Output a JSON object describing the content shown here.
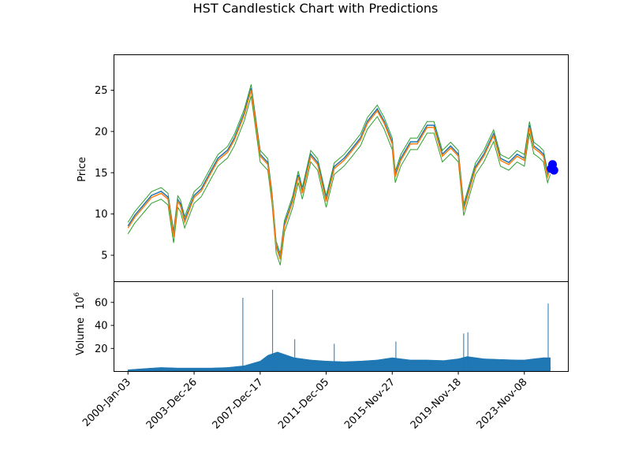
{
  "figure": {
    "title": "HST Candlestick Chart with Predictions"
  },
  "chart_data": [
    {
      "type": "candlestick",
      "panel": "price",
      "ylabel": "Price",
      "ylim": [
        1.8,
        29.3
      ],
      "yticks": [
        5,
        10,
        15,
        20,
        25
      ],
      "x_range": [
        "1999-03-01",
        "2026-07-01"
      ],
      "colors": {
        "close_line": "#ff7f0e",
        "open_line": "#1f77b4",
        "wick": "#2ca02c",
        "prediction": "#0000ff"
      },
      "series": [
        {
          "name": "close",
          "x": [
            "2000-01-03",
            "2000-06-01",
            "2001-01-01",
            "2001-06-01",
            "2002-01-01",
            "2002-06-01",
            "2002-10-01",
            "2003-01-01",
            "2003-03-01",
            "2003-06-01",
            "2003-12-26",
            "2004-06-01",
            "2005-01-01",
            "2005-06-01",
            "2006-01-01",
            "2006-06-01",
            "2007-01-01",
            "2007-06-01",
            "2007-12-17",
            "2008-06-01",
            "2008-09-01",
            "2008-12-01",
            "2009-03-01",
            "2009-06-01",
            "2009-12-01",
            "2010-04-01",
            "2010-07-01",
            "2011-01-01",
            "2011-06-01",
            "2011-12-05",
            "2012-06-01",
            "2013-01-01",
            "2013-06-01",
            "2014-01-01",
            "2014-06-01",
            "2015-01-01",
            "2015-06-01",
            "2015-11-27",
            "2016-02-01",
            "2016-06-01",
            "2017-01-01",
            "2017-06-01",
            "2018-01-01",
            "2018-06-01",
            "2018-12-01",
            "2019-06-01",
            "2019-11-18",
            "2020-03-15",
            "2020-06-01",
            "2020-12-01",
            "2021-06-01",
            "2022-01-01",
            "2022-06-01",
            "2022-12-01",
            "2023-06-01",
            "2023-11-08",
            "2024-03-01",
            "2024-06-01",
            "2024-10-01",
            "2025-01-01",
            "2025-04-01",
            "2025-06-01"
          ],
          "values": [
            8.3,
            9.6,
            11.0,
            12.0,
            12.5,
            11.8,
            7.2,
            11.5,
            11.0,
            9.0,
            12.0,
            12.8,
            15.0,
            16.5,
            17.5,
            19.0,
            22.0,
            25.0,
            17.0,
            16.0,
            12.0,
            6.0,
            4.5,
            8.5,
            11.5,
            14.5,
            12.5,
            17.0,
            16.0,
            11.5,
            15.5,
            16.5,
            17.5,
            19.0,
            21.0,
            22.5,
            21.0,
            18.5,
            14.5,
            16.5,
            18.5,
            18.5,
            20.5,
            20.5,
            17.0,
            18.0,
            17.0,
            10.5,
            12.0,
            15.5,
            17.0,
            19.5,
            16.5,
            16.0,
            17.0,
            16.5,
            20.5,
            18.0,
            17.5,
            17.0,
            14.5,
            15.5
          ]
        }
      ],
      "predictions": {
        "x": [
          "2025-06-20",
          "2025-07-20",
          "2025-08-20"
        ],
        "values": [
          15.5,
          16.0,
          15.3
        ]
      }
    },
    {
      "type": "bar",
      "panel": "volume",
      "ylabel": "Volume",
      "yscale_label": "10^6",
      "ylim": [
        0,
        78
      ],
      "yticks": [
        20,
        40,
        60
      ],
      "color": "#1f77b4",
      "x": [
        "2000-01-03",
        "2001-01-01",
        "2002-01-01",
        "2003-01-01",
        "2004-01-01",
        "2005-01-01",
        "2006-01-01",
        "2007-01-01",
        "2007-12-17",
        "2008-06-01",
        "2009-01-01",
        "2010-01-01",
        "2011-01-01",
        "2011-12-05",
        "2013-01-01",
        "2014-01-01",
        "2015-01-01",
        "2015-11-27",
        "2017-01-01",
        "2018-01-01",
        "2019-01-01",
        "2019-11-18",
        "2020-06-01",
        "2021-06-01",
        "2022-06-01",
        "2023-06-01",
        "2023-11-08",
        "2024-06-01",
        "2025-01-01",
        "2025-06-01"
      ],
      "values": [
        1.5,
        2.5,
        3.5,
        3.0,
        3.0,
        3.0,
        3.5,
        5.0,
        9.0,
        14.0,
        17.0,
        12.0,
        10.0,
        9.0,
        8.5,
        9.0,
        10.0,
        12.0,
        10.0,
        10.0,
        9.5,
        11.0,
        13.0,
        11.0,
        10.5,
        10.0,
        10.0,
        11.0,
        12.0,
        12.0
      ],
      "spikes": {
        "x": [
          "2006-12-01",
          "2008-09-15",
          "2010-01-15",
          "2012-06-01",
          "2016-02-15",
          "2020-03-15",
          "2020-06-15",
          "2025-04-15"
        ],
        "values": [
          64,
          71,
          28,
          24,
          26,
          33,
          34,
          59
        ]
      }
    }
  ],
  "x_axis": {
    "ticks": [
      "2000-Jan-03",
      "2003-Dec-26",
      "2007-Dec-17",
      "2011-Dec-05",
      "2015-Nov-27",
      "2019-Nov-18",
      "2023-Nov-08"
    ],
    "tick_dates": [
      "2000-01-03",
      "2003-12-26",
      "2007-12-17",
      "2011-12-05",
      "2015-11-27",
      "2019-11-18",
      "2023-11-08"
    ]
  }
}
